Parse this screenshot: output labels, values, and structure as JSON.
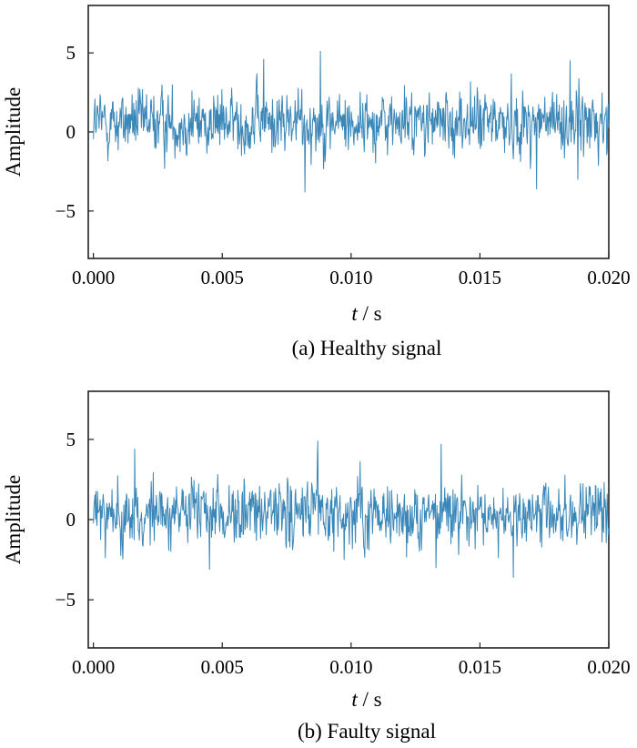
{
  "chart_data": [
    {
      "type": "line",
      "caption": "(a) Healthy signal",
      "xlabel_italic": "t",
      "xlabel_unit": " / s",
      "ylabel": "Amplitude",
      "xlim": [
        -0.0002,
        0.02
      ],
      "ylim": [
        -8,
        8
      ],
      "xticks": [
        0.0,
        0.005,
        0.01,
        0.015,
        0.02
      ],
      "xtick_labels": [
        "0.000",
        "0.005",
        "0.010",
        "0.015",
        "0.020"
      ],
      "yticks": [
        5,
        0,
        -5
      ],
      "ytick_labels": [
        "5",
        "0",
        "−5"
      ],
      "grid": false,
      "series": [
        {
          "color": "#3a87b8",
          "x_start": 0.0,
          "x_end": 0.02,
          "n_points": 1000,
          "mean": 0.6,
          "std": 1.3,
          "min": -3.8,
          "max": 5.1,
          "peaks": [
            {
              "x": 0.0088,
              "y": 5.1
            },
            {
              "x": 0.0066,
              "y": 4.6
            },
            {
              "x": 0.0185,
              "y": 4.5
            },
            {
              "x": 0.0082,
              "y": -3.8
            },
            {
              "x": 0.0172,
              "y": -3.6
            },
            {
              "x": 0.0188,
              "y": -3.0
            }
          ]
        }
      ]
    },
    {
      "type": "line",
      "caption": "(b) Faulty signal",
      "xlabel_italic": "t",
      "xlabel_unit": " / s",
      "ylabel": "Amplitude",
      "xlim": [
        -0.0002,
        0.02
      ],
      "ylim": [
        -8,
        8
      ],
      "xticks": [
        0.0,
        0.005,
        0.01,
        0.015,
        0.02
      ],
      "xtick_labels": [
        "0.000",
        "0.005",
        "0.010",
        "0.015",
        "0.020"
      ],
      "yticks": [
        5,
        0,
        -5
      ],
      "ytick_labels": [
        "5",
        "0",
        "−5"
      ],
      "grid": false,
      "series": [
        {
          "color": "#3a87b8",
          "x_start": 0.0,
          "x_end": 0.02,
          "n_points": 1000,
          "mean": 0.3,
          "std": 1.3,
          "min": -3.6,
          "max": 4.9,
          "peaks": [
            {
              "x": 0.0087,
              "y": 4.9
            },
            {
              "x": 0.0135,
              "y": 4.7
            },
            {
              "x": 0.0016,
              "y": 4.4
            },
            {
              "x": 0.0163,
              "y": -3.6
            },
            {
              "x": 0.0045,
              "y": -3.1
            },
            {
              "x": 0.0133,
              "y": -3.0
            }
          ]
        }
      ]
    }
  ]
}
